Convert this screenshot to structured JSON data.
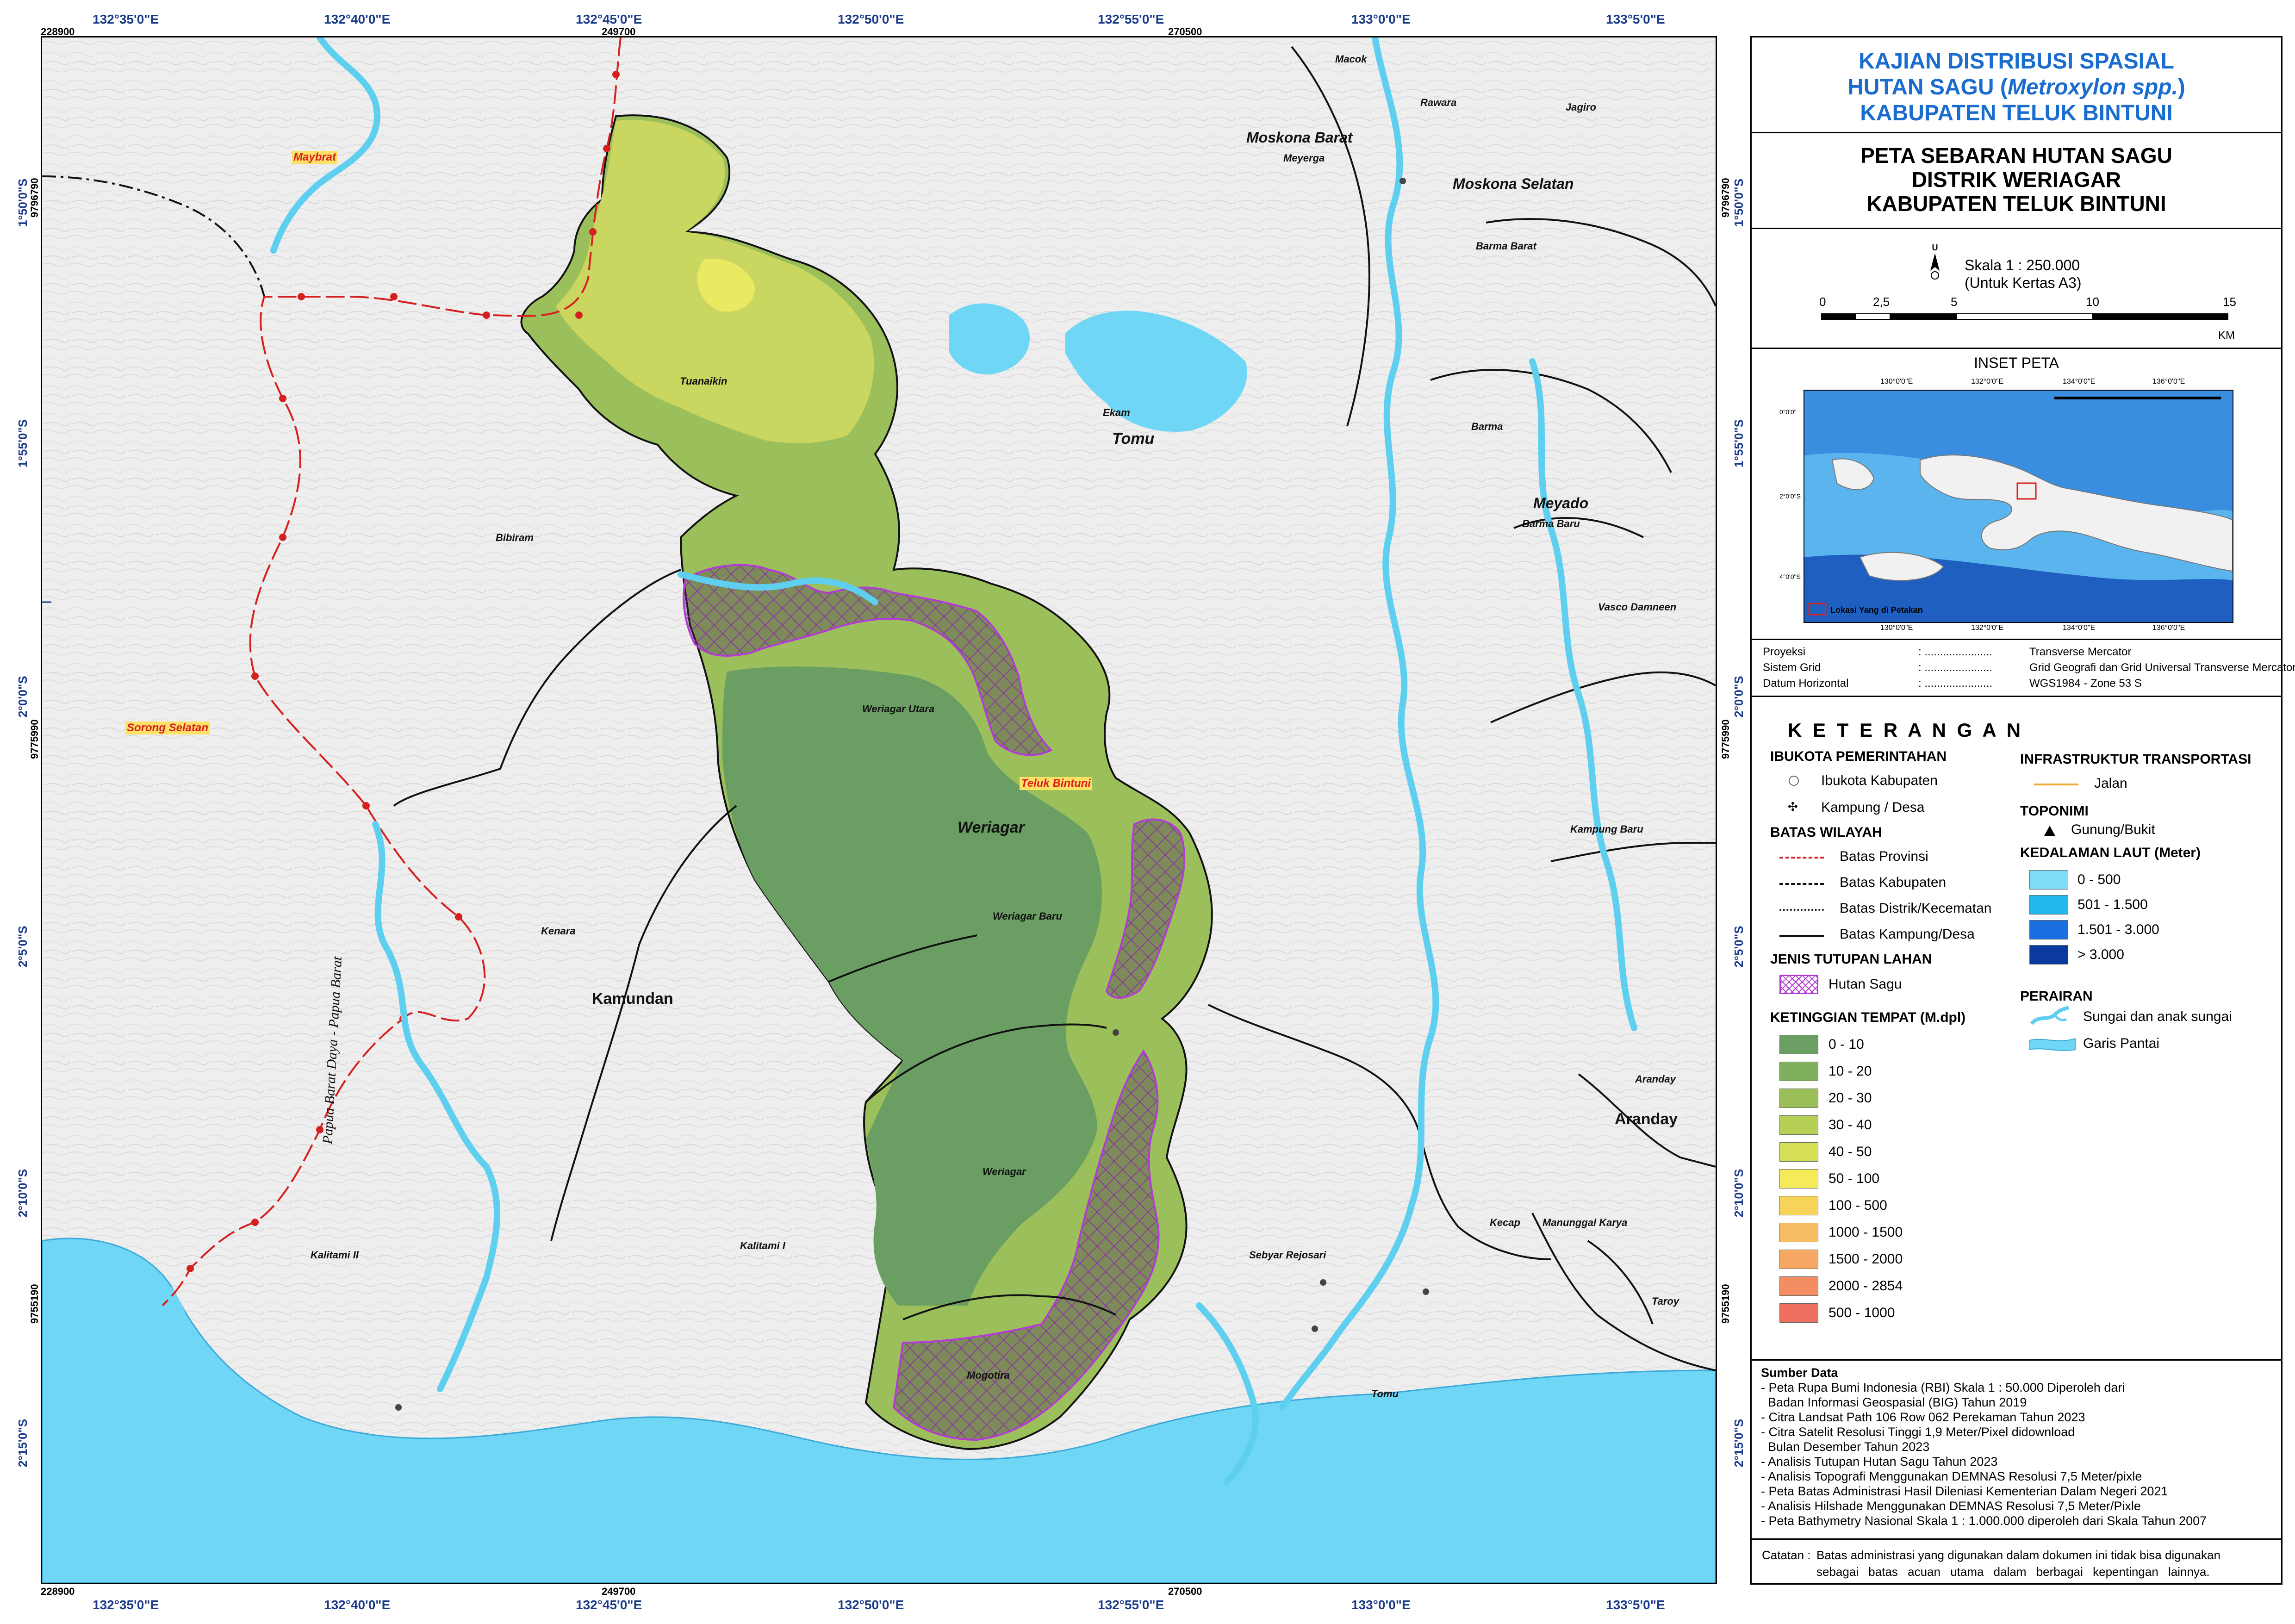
{
  "map": {
    "places": {
      "maybrat": "Maybrat",
      "sorong_selatan": "Sorong Selatan",
      "teluk_bintuni": "Teluk Bintuni",
      "tuanaikin": "Tuanaikin",
      "bibiram": "Bibiram",
      "weriagar_utara": "Weriagar Utara",
      "weriagar_district": "Weriagar",
      "weriagar_baru": "Weriagar Baru",
      "weriagar": "Weriagar",
      "mogotira": "Mogotira",
      "kenara": "Kenara",
      "kamundan": "Kamundan",
      "kalitami_ii": "Kalitami II",
      "kalitami_i": "Kalitami I",
      "ekam": "Ekam",
      "tomu_district": "Tomu",
      "tomu": "Tomu",
      "moskona_barat": "Moskona Barat",
      "meyerga": "Meyerga",
      "moskona_selatan": "Moskona Selatan",
      "macok": "Macok",
      "rawara": "Rawara",
      "jagiro": "Jagiro",
      "barma_barat": "Barma Barat",
      "barma": "Barma",
      "meyado": "Meyado",
      "barma_baru": "Barma Baru",
      "vasco_damneen": "Vasco Damneen",
      "kampung_baru": "Kampung Baru",
      "aranday_village": "Aranday",
      "aranday": "Aranday",
      "kecap": "Kecap",
      "manunggal_karya": "Manunggal Karya",
      "taroy": "Taroy",
      "sebyar_rejosari": "Sebyar Rejosari",
      "province_border": "Papua Barat Daya - Papua Barat"
    },
    "top_coords": [
      "132°35'0\"E",
      "132°40'0\"E",
      "132°45'0\"E",
      "132°50'0\"E",
      "132°55'0\"E",
      "133°0'0\"E",
      "133°5'0\"E"
    ],
    "bottom_coords": [
      "132°35'0\"E",
      "132°40'0\"E",
      "132°45'0\"E",
      "132°50'0\"E",
      "132°55'0\"E",
      "133°0'0\"E",
      "133°5'0\"E"
    ],
    "left_coords": [
      "1°50'0\"S",
      "1°55'0\"S",
      "2°0'0\"S",
      "2°5'0\"S",
      "2°10'0\"S",
      "2°15'0\"S"
    ],
    "right_coords": [
      "1°50'0\"S",
      "1°55'0\"S",
      "2°0'0\"S",
      "2°5'0\"S",
      "2°10'0\"S",
      "2°15'0\"S"
    ],
    "utm_top": [
      "228900",
      "249700",
      "270500"
    ],
    "utm_bottom": [
      "228900",
      "249700",
      "270500"
    ],
    "utm_left": [
      "9796790",
      "9775990",
      "9755190"
    ],
    "utm_right": [
      "9796790",
      "9775990",
      "9755190"
    ]
  },
  "panel": {
    "title_lines": [
      "KAJIAN DISTRIBUSI SPASIAL",
      "HUTAN SAGU (",
      "Metroxylon spp.",
      ")",
      "KABUPATEN TELUK BINTUNI"
    ],
    "subtitle_lines": [
      "PETA SEBARAN HUTAN SAGU",
      "DISTRIK WERIAGAR",
      "KABUPATEN TELUK BINTUNI"
    ],
    "scale_text": "Skala 1 : 250.000",
    "scale_note": "(Untuk Kertas A3)",
    "scale_ticks": [
      "0",
      "2,5",
      "5",
      "10",
      "15"
    ],
    "scale_unit": "KM",
    "north_letter": "U",
    "inset_title": "INSET PETA",
    "inset_top_coords": [
      "130°0'0\"E",
      "132°0'0\"E",
      "134°0'0\"E",
      "136°0'0\"E"
    ],
    "inset_bottom_coords": [
      "130°0'0\"E",
      "132°0'0\"E",
      "134°0'0\"E",
      "136°0'0\"E"
    ],
    "inset_left_coords": [
      "0°0'0\"",
      "2°0'0\"S",
      "4°0'0\"S"
    ],
    "inset_legend": "Lokasi Yang di Petakan",
    "projection_rows": [
      {
        "label": "Proyeksi",
        "dots": ": ......................",
        "value": "Transverse Mercator"
      },
      {
        "label": "Sistem Grid",
        "dots": ": ......................",
        "value": "Grid Geografi dan Grid Universal Transverse Mercator"
      },
      {
        "label": "Datum Horizontal",
        "dots": ": ......................",
        "value": "WGS1984 - Zone 53 S"
      }
    ],
    "legend_title": "K E T E R A N G A N",
    "ibukota_head": "IBUKOTA PEMERINTAHAN",
    "ibukota_items": [
      "Ibukota Kabupaten",
      "Kampung / Desa"
    ],
    "batas_head": "BATAS WILAYAH",
    "batas_items": [
      "Batas Provinsi",
      "Batas Kabupaten",
      "Batas Distrik/Kecematan",
      "Batas Kampung/Desa"
    ],
    "tutupan_head": "JENIS TUTUPAN LAHAN",
    "tutupan_items": [
      "Hutan Sagu"
    ],
    "ketinggian_head": "KETINGGIAN TEMPAT (M.dpl)",
    "ketinggian_items": [
      {
        "label": "0 - 10",
        "color": "#6a9e62"
      },
      {
        "label": "10 - 20",
        "color": "#7fae5c"
      },
      {
        "label": "20 - 30",
        "color": "#9abe58"
      },
      {
        "label": "30 - 40",
        "color": "#b6cf55"
      },
      {
        "label": "40 - 50",
        "color": "#d4df55"
      },
      {
        "label": "50 - 100",
        "color": "#f4ea5a"
      },
      {
        "label": "100 - 500",
        "color": "#f8d35a"
      },
      {
        "label": "1000 - 1500",
        "color": "#f6bd62"
      },
      {
        "label": "1500 - 2000",
        "color": "#f6a862"
      },
      {
        "label": "2000 - 2854",
        "color": "#f48e62"
      },
      {
        "label": "500 - 1000",
        "color": "#f07060"
      }
    ],
    "infra_head": "INFRASTRUKTUR TRANSPORTASI",
    "infra_items": [
      "Jalan"
    ],
    "toponimi_head": "TOPONIMI",
    "toponimi_items": [
      "Gunung/Bukit"
    ],
    "laut_head": "KEDALAMAN LAUT (Meter)",
    "laut_items": [
      {
        "label": "0 - 500",
        "color": "#7fdcf8"
      },
      {
        "label": "501 - 1.500",
        "color": "#22b8ee"
      },
      {
        "label": "1.501 - 3.000",
        "color": "#1a6fe0"
      },
      {
        "label": "> 3.000",
        "color": "#0a3aa0"
      }
    ],
    "perairan_head": "PERAIRAN",
    "perairan_items": [
      "Sungai dan anak sungai",
      "Garis Pantai"
    ],
    "sumber_head": "Sumber Data",
    "sumber_items": [
      "- Peta Rupa Bumi Indonesia (RBI) Skala 1 : 50.000 Diperoleh dari",
      "  Badan Informasi Geospasial (BIG) Tahun 2019",
      "- Citra Landsat Path 106 Row 062 Perekaman Tahun 2023",
      "- Citra Satelit Resolusi Tinggi 1,9 Meter/Pixel didownload",
      "  Bulan Desember Tahun 2023",
      "- Analisis Tutupan Hutan Sagu Tahun 2023",
      "- Analisis Topografi Menggunakan DEMNAS Resolusi 7,5 Meter/pixle",
      "- Peta Batas Administrasi Hasil Dileniasi Kementerian Dalam Negeri 2021",
      "- Analisis Hilshade Menggunakan DEMNAS Resolusi 7,5 Meter/Pixle",
      "- Peta Bathymetry Nasional Skala 1 : 1.000.000 diperoleh dari Skala Tahun 2007"
    ],
    "catatan_label": "Catatan :",
    "catatan_text": [
      "Batas administrasi yang digunakan dalam dokumen ini tidak bisa digunakan",
      "sebagai batas acuan utama dalam berbagai kepentingan lainnya."
    ]
  }
}
